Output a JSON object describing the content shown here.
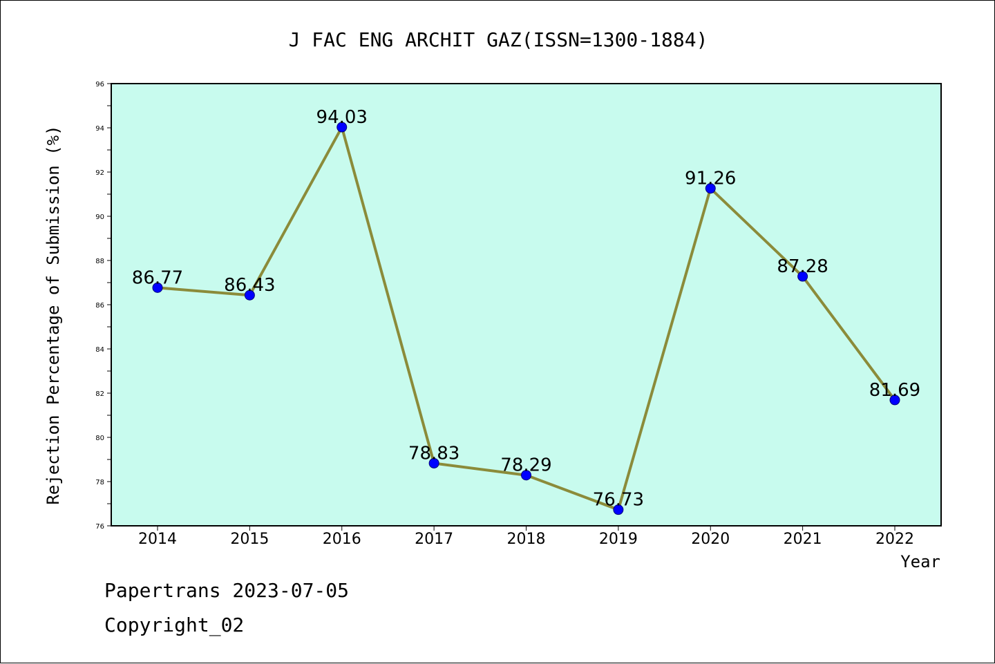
{
  "chart_data": {
    "type": "line",
    "title": "J FAC ENG ARCHIT GAZ(ISSN=1300-1884)",
    "xlabel": "Year",
    "ylabel": "Rejection Percentage of Submission (%)",
    "categories": [
      "2014",
      "2015",
      "2016",
      "2017",
      "2018",
      "2019",
      "2020",
      "2021",
      "2022"
    ],
    "values": [
      86.77,
      86.43,
      94.03,
      78.83,
      78.29,
      76.73,
      91.26,
      87.28,
      81.69
    ],
    "data_labels": [
      "86.77",
      "86.43",
      "94.03",
      "78.83",
      "78.29",
      "76.73",
      "91.26",
      "87.28",
      "81.69"
    ],
    "ylim": [
      76,
      96
    ],
    "yticks": [
      76,
      78,
      80,
      82,
      84,
      86,
      88,
      90,
      92,
      94,
      96
    ],
    "grid": false,
    "colors": {
      "plot_background": "#c8fbee",
      "line": "#8b8b3a",
      "marker": "#0000ff"
    }
  },
  "footer": {
    "line1": "Papertrans 2023-07-05",
    "line2": "Copyright_02"
  }
}
